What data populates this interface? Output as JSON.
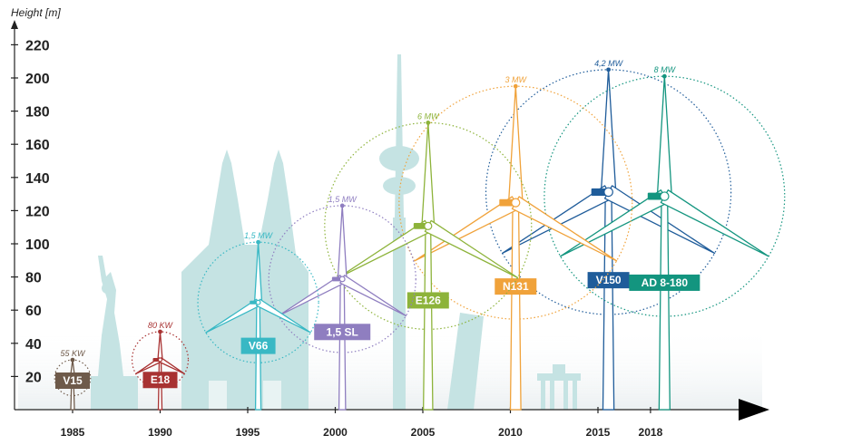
{
  "chart_data": {
    "type": "scatter",
    "ylabel": "Height [m]",
    "ylim": [
      0,
      230
    ],
    "y_ticks": [
      20,
      40,
      60,
      80,
      100,
      120,
      140,
      160,
      180,
      200,
      220
    ],
    "x_ticks": [
      "1985",
      "1990",
      "1995",
      "2000",
      "2005",
      "2010",
      "2015",
      "2018"
    ],
    "turbines": [
      {
        "name": "V15",
        "year": 1985,
        "height": 30,
        "power": "55 KW",
        "color": "#6e5a4a"
      },
      {
        "name": "E18",
        "year": 1990,
        "height": 47,
        "power": "80 KW",
        "color": "#a83232"
      },
      {
        "name": "V66",
        "year": 1995.6,
        "height": 101,
        "power": "1,5 MW",
        "color": "#38b8c4"
      },
      {
        "name": "1,5 SL",
        "year": 2000.4,
        "height": 123,
        "power": "1,5 MW",
        "color": "#8f7ec0"
      },
      {
        "name": "E126",
        "year": 2005.3,
        "height": 173,
        "power": "6 MW",
        "color": "#8db33a"
      },
      {
        "name": "N131",
        "year": 2010.3,
        "height": 195,
        "power": "3 MW",
        "color": "#f0a23a"
      },
      {
        "name": "V150",
        "year": 2015.6,
        "height": 205,
        "power": "4,2 MW",
        "color": "#1f5c9a"
      },
      {
        "name": "AD 8-180",
        "year": 2018.8,
        "height": 201,
        "power": "8 MW",
        "color": "#13957f"
      }
    ]
  }
}
